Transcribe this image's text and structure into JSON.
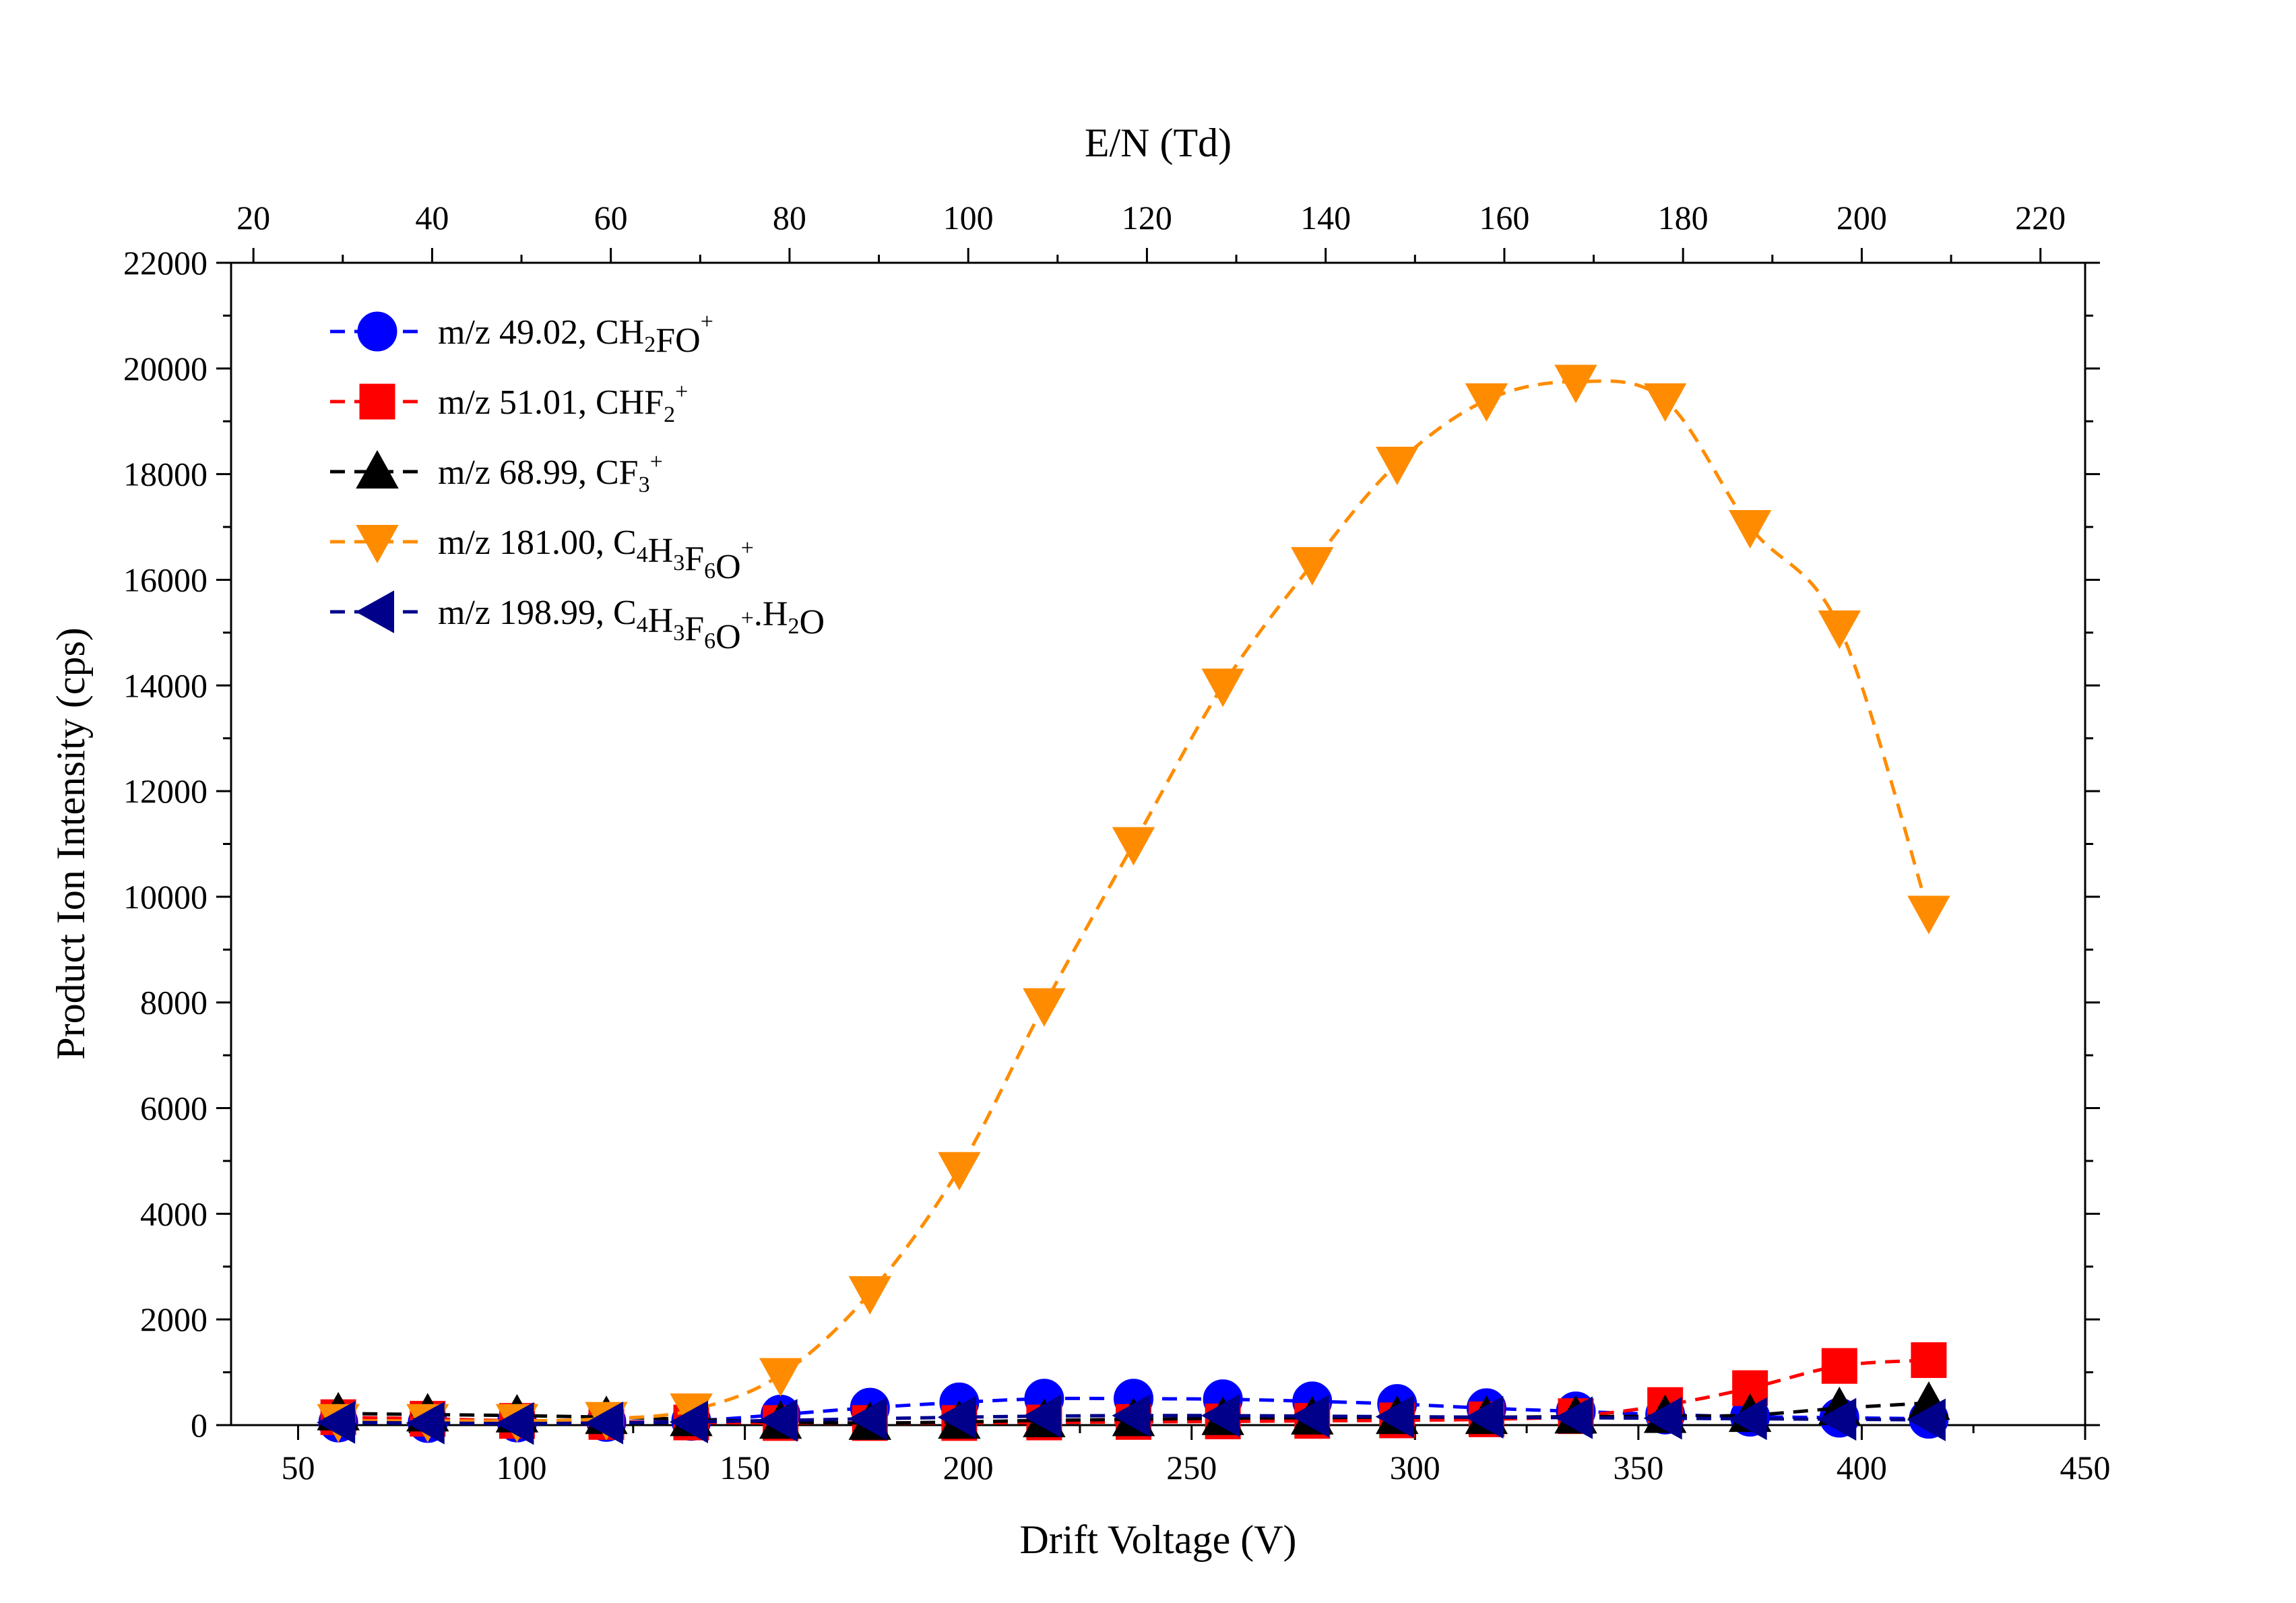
{
  "chart_data": {
    "type": "line",
    "xlabel": "Drift Voltage (V)",
    "ylabel": "Product Ion Intensity (cps)",
    "x2label": "E/N (Td)",
    "xlim": [
      35,
      450
    ],
    "ylim": [
      0,
      22000
    ],
    "x2lim": [
      17.5,
      225
    ],
    "x_ticks": [
      50,
      100,
      150,
      200,
      250,
      300,
      350,
      400,
      450
    ],
    "y_ticks": [
      0,
      2000,
      4000,
      6000,
      8000,
      10000,
      12000,
      14000,
      16000,
      18000,
      20000,
      22000
    ],
    "x2_ticks": [
      20,
      40,
      60,
      80,
      100,
      120,
      140,
      160,
      180,
      200,
      220
    ],
    "grid": false,
    "legend_position": "top-left",
    "x": [
      59,
      79,
      99,
      119,
      138,
      158,
      178,
      198,
      217,
      237,
      257,
      277,
      296,
      316,
      336,
      356,
      375,
      395,
      415
    ],
    "series": [
      {
        "name": "m/z 49.02, CH2FO+",
        "legend": {
          "base": "m/z 49.02, CH",
          "sub1": "2",
          "mid1": "FO",
          "sup1": "+"
        },
        "marker": "circle",
        "color": "#0000ff",
        "values": [
          50,
          40,
          50,
          60,
          80,
          200,
          330,
          430,
          500,
          500,
          490,
          450,
          400,
          320,
          260,
          200,
          160,
          140,
          120
        ]
      },
      {
        "name": "m/z 51.01, CHF2+",
        "legend": {
          "base": "m/z 51.01, CHF",
          "sub1": "2",
          "sup1": "+"
        },
        "marker": "square",
        "color": "#ff0000",
        "values": [
          150,
          120,
          80,
          60,
          50,
          40,
          40,
          40,
          50,
          60,
          70,
          80,
          90,
          110,
          170,
          380,
          700,
          1120,
          1230
        ]
      },
      {
        "name": "m/z 68.99, CF3+",
        "legend": {
          "base": "m/z 68.99, CF",
          "sub1": "3",
          "sup1": "+"
        },
        "marker": "triangle-up",
        "color": "#000000",
        "values": [
          220,
          200,
          180,
          150,
          110,
          60,
          40,
          60,
          90,
          110,
          130,
          140,
          150,
          150,
          160,
          170,
          190,
          320,
          420
        ]
      },
      {
        "name": "m/z 181.00, C4H3F6O+",
        "legend": {
          "base": "m/z 181.00, C",
          "sub1": "4",
          "mid1": "H",
          "sub2": "3",
          "mid2": "F",
          "sub3": "6",
          "mid3": "O",
          "sup1": "+"
        },
        "marker": "triangle-down",
        "color": "#ff8c00",
        "values": [
          80,
          80,
          80,
          120,
          280,
          950,
          2500,
          4850,
          7950,
          11000,
          14000,
          16300,
          18200,
          19400,
          19750,
          19400,
          17000,
          15100,
          9700
        ]
      },
      {
        "name": "m/z 198.99, C4H3F6O+.H2O",
        "legend": {
          "base": "m/z 198.99, C",
          "sub1": "4",
          "mid1": "H",
          "sub2": "3",
          "mid2": "F",
          "sub3": "6",
          "mid3": "O",
          "sup1": "+",
          "mid4": ".H",
          "sub4": "2",
          "mid5": "O"
        },
        "marker": "triangle-left",
        "color": "#00008b",
        "values": [
          50,
          40,
          30,
          40,
          60,
          90,
          120,
          150,
          170,
          180,
          180,
          170,
          160,
          150,
          140,
          130,
          120,
          110,
          100
        ]
      }
    ]
  }
}
